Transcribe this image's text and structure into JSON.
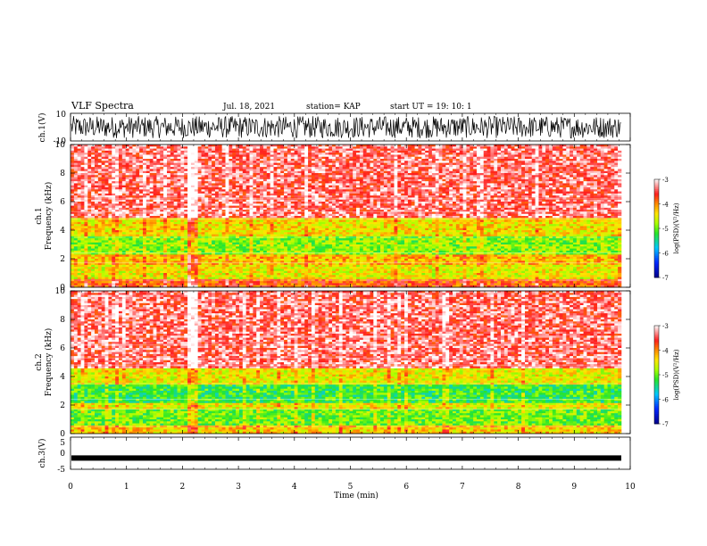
{
  "header": {
    "title": "VLF Spectra",
    "date": "Jul. 18, 2021",
    "station": "station= KAP",
    "start": "start  UT =   19: 10: 1"
  },
  "colorbar": {
    "label": "log(PSD)(V²/Hz)",
    "ticks": [
      "-3",
      "-4",
      "-5",
      "-6",
      "-7"
    ]
  },
  "chart_data": [
    {
      "type": "line",
      "name": "ch.1 waveform",
      "ylabel": "ch.1(V)",
      "yticks": [
        "10",
        "-10"
      ],
      "ylim": [
        -10,
        10
      ],
      "xlim": [
        0,
        10
      ],
      "x_extent_min": 9.84,
      "amplitude_range": [
        -8,
        8
      ]
    },
    {
      "type": "heatmap",
      "ylabel": "ch.1\nFrequency (kHz)",
      "yticks": [
        "0",
        "2",
        "4",
        "6",
        "8",
        "10"
      ],
      "ylim": [
        0,
        10
      ],
      "xlim": [
        0,
        10
      ],
      "x_extent_min": 9.84,
      "clim": [
        -7,
        -3
      ],
      "bands_khz": [
        {
          "range": [
            0,
            0.5
          ],
          "logpsd": -3.8
        },
        {
          "range": [
            0.5,
            1.5
          ],
          "logpsd": -4.5
        },
        {
          "range": [
            1.5,
            2.3
          ],
          "logpsd": -4.2
        },
        {
          "range": [
            2.3,
            3.6
          ],
          "logpsd": -4.9
        },
        {
          "range": [
            3.6,
            4.8
          ],
          "logpsd": -4.4
        },
        {
          "range": [
            4.8,
            10
          ],
          "logpsd": -3.4
        }
      ]
    },
    {
      "type": "heatmap",
      "ylabel": "ch.2\nFrequency (kHz)",
      "yticks": [
        "0",
        "2",
        "4",
        "6",
        "8",
        "10"
      ],
      "ylim": [
        0,
        10
      ],
      "xlim": [
        0,
        10
      ],
      "x_extent_min": 9.84,
      "clim": [
        -7,
        -3
      ],
      "bands_khz": [
        {
          "range": [
            0,
            0.5
          ],
          "logpsd": -4.3
        },
        {
          "range": [
            0.5,
            1.7
          ],
          "logpsd": -5.0
        },
        {
          "range": [
            1.7,
            2.2
          ],
          "logpsd": -4.5
        },
        {
          "range": [
            2.2,
            3.4
          ],
          "logpsd": -5.2
        },
        {
          "range": [
            3.4,
            4.6
          ],
          "logpsd": -4.5
        },
        {
          "range": [
            4.6,
            10
          ],
          "logpsd": -3.4
        }
      ]
    },
    {
      "type": "line",
      "name": "ch.3 waveform",
      "ylabel": "ch.3(V)",
      "yticks": [
        "5",
        "0",
        "-5"
      ],
      "ylim": [
        -5,
        5
      ],
      "xlim": [
        0,
        10
      ],
      "x_extent_min": 9.84,
      "level": -1.5,
      "xlabel": "Time (min)",
      "xticks": [
        "0",
        "1",
        "2",
        "3",
        "4",
        "5",
        "6",
        "7",
        "8",
        "9",
        "10"
      ]
    }
  ]
}
